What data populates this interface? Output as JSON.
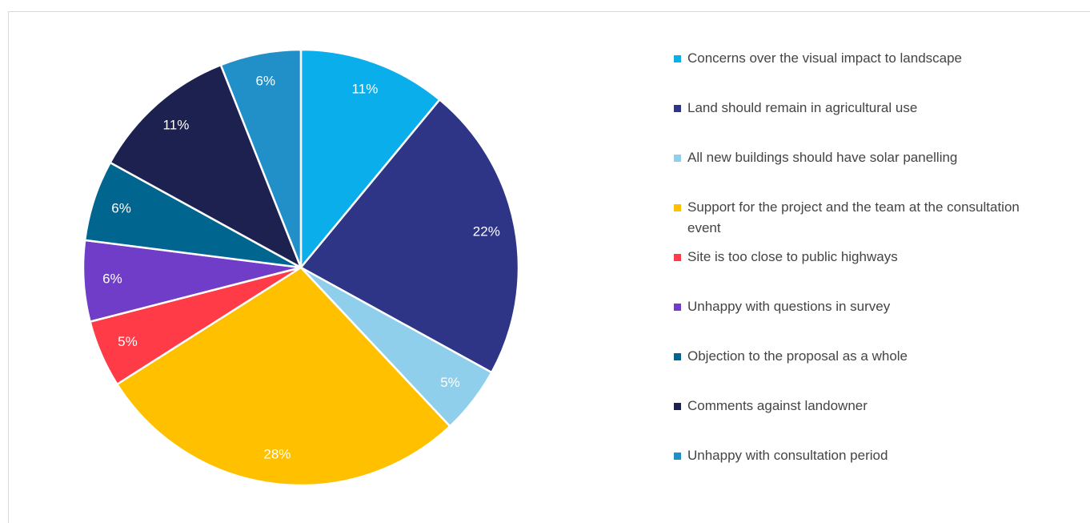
{
  "chart_data": {
    "type": "pie",
    "categories": [
      "Concerns over the visual impact to landscape",
      "Land should remain in agricultural use",
      "All new buildings should have solar panelling",
      "Support for the project and the team at the consultation event",
      "Site is too close to public highways",
      "Unhappy with questions in survey",
      "Objection to the proposal as a whole",
      "Comments against landowner",
      "Unhappy with consultation period"
    ],
    "values": [
      11,
      22,
      5,
      28,
      5,
      6,
      6,
      11,
      6
    ],
    "value_labels": [
      "11%",
      "22%",
      "5%",
      "28%",
      "5%",
      "6%",
      "6%",
      "11%",
      "6%"
    ],
    "colors": [
      "#0aaeea",
      "#2e3586",
      "#8fcfec",
      "#ffc000",
      "#ff3b47",
      "#6f3dc7",
      "#006690",
      "#1d2150",
      "#2190c8"
    ],
    "legend": "right"
  }
}
